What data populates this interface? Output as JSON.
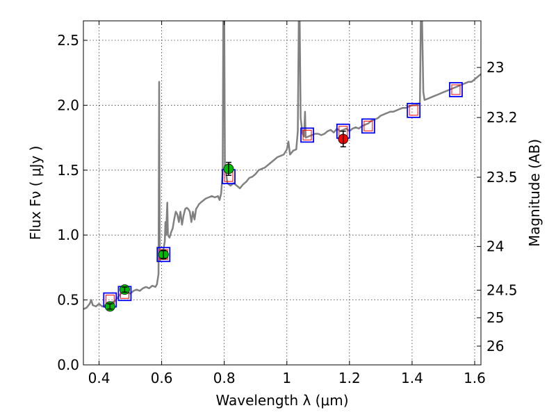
{
  "chart_data": {
    "type": "scatter",
    "title": "",
    "xlabel": "Wavelength  λ (μm)",
    "ylabel": "Flux  Fν  ( μJy )",
    "y2label": "Magnitude (AB)",
    "xlim": [
      0.35,
      1.62
    ],
    "ylim": [
      0.0,
      2.65
    ],
    "grid": true,
    "xticks": [
      0.4,
      0.6,
      0.8,
      1.0,
      1.2,
      1.4,
      1.6
    ],
    "xtick_labels": [
      "0.4",
      "0.6",
      "0.8",
      "1",
      "1.2",
      "1.4",
      "1.6"
    ],
    "yticks": [
      0.0,
      0.5,
      1.0,
      1.5,
      2.0,
      2.5
    ],
    "ytick_labels": [
      "0.0",
      "0.5",
      "1.0",
      "1.5",
      "2.0",
      "2.5"
    ],
    "magnitude_ticks": [
      {
        "label": "23",
        "mag": 23.0
      },
      {
        "label": "23.2",
        "mag": 23.2
      },
      {
        "label": "23.5",
        "mag": 23.5
      },
      {
        "label": "24",
        "mag": 24.0
      },
      {
        "label": "24.5",
        "mag": 24.5
      },
      {
        "label": "25",
        "mag": 25.0
      },
      {
        "label": "26",
        "mag": 26.0
      }
    ],
    "colors": {
      "spectrum": "#808080",
      "model_box": "#0000ff",
      "model_box_inner": "#ff0000",
      "obs_green": "#00bb00",
      "obs_red": "#ff0000",
      "errorbar": "#000000"
    },
    "series": [
      {
        "name": "model spectrum",
        "kind": "line",
        "points": [
          [
            0.35,
            0.43
          ],
          [
            0.36,
            0.44
          ],
          [
            0.37,
            0.47
          ],
          [
            0.375,
            0.5
          ],
          [
            0.38,
            0.46
          ],
          [
            0.39,
            0.45
          ],
          [
            0.4,
            0.47
          ],
          [
            0.41,
            0.45
          ],
          [
            0.42,
            0.46
          ],
          [
            0.43,
            0.47
          ],
          [
            0.44,
            0.48
          ],
          [
            0.45,
            0.49
          ],
          [
            0.46,
            0.52
          ],
          [
            0.47,
            0.55
          ],
          [
            0.48,
            0.57
          ],
          [
            0.49,
            0.56
          ],
          [
            0.5,
            0.55
          ],
          [
            0.51,
            0.57
          ],
          [
            0.52,
            0.58
          ],
          [
            0.53,
            0.57
          ],
          [
            0.54,
            0.59
          ],
          [
            0.55,
            0.6
          ],
          [
            0.56,
            0.59
          ],
          [
            0.57,
            0.61
          ],
          [
            0.58,
            0.6
          ],
          [
            0.585,
            0.62
          ],
          [
            0.59,
            0.7
          ],
          [
            0.592,
            2.18
          ],
          [
            0.594,
            0.8
          ],
          [
            0.6,
            0.84
          ],
          [
            0.605,
            0.88
          ],
          [
            0.61,
            0.95
          ],
          [
            0.612,
            1.1
          ],
          [
            0.614,
            1.0
          ],
          [
            0.618,
            1.25
          ],
          [
            0.62,
            1.0
          ],
          [
            0.625,
            0.98
          ],
          [
            0.63,
            1.02
          ],
          [
            0.635,
            1.05
          ],
          [
            0.64,
            1.12
          ],
          [
            0.645,
            1.18
          ],
          [
            0.65,
            1.16
          ],
          [
            0.655,
            1.1
          ],
          [
            0.66,
            1.18
          ],
          [
            0.665,
            1.08
          ],
          [
            0.67,
            1.15
          ],
          [
            0.675,
            1.2
          ],
          [
            0.68,
            1.21
          ],
          [
            0.685,
            1.2
          ],
          [
            0.69,
            1.18
          ],
          [
            0.695,
            1.1
          ],
          [
            0.7,
            1.18
          ],
          [
            0.705,
            1.12
          ],
          [
            0.71,
            1.2
          ],
          [
            0.715,
            1.22
          ],
          [
            0.72,
            1.24
          ],
          [
            0.73,
            1.26
          ],
          [
            0.74,
            1.28
          ],
          [
            0.75,
            1.29
          ],
          [
            0.76,
            1.3
          ],
          [
            0.77,
            1.29
          ],
          [
            0.78,
            1.3
          ],
          [
            0.785,
            1.27
          ],
          [
            0.79,
            1.32
          ],
          [
            0.795,
            1.48
          ],
          [
            0.797,
            2.65
          ],
          [
            0.8,
            2.65
          ],
          [
            0.802,
            1.55
          ],
          [
            0.81,
            1.4
          ],
          [
            0.82,
            1.38
          ],
          [
            0.83,
            1.4
          ],
          [
            0.84,
            1.38
          ],
          [
            0.85,
            1.36
          ],
          [
            0.86,
            1.39
          ],
          [
            0.87,
            1.41
          ],
          [
            0.88,
            1.44
          ],
          [
            0.89,
            1.45
          ],
          [
            0.9,
            1.47
          ],
          [
            0.91,
            1.5
          ],
          [
            0.92,
            1.51
          ],
          [
            0.93,
            1.52
          ],
          [
            0.94,
            1.54
          ],
          [
            0.95,
            1.56
          ],
          [
            0.96,
            1.58
          ],
          [
            0.97,
            1.6
          ],
          [
            0.98,
            1.61
          ],
          [
            0.99,
            1.62
          ],
          [
            1.0,
            1.66
          ],
          [
            1.005,
            1.72
          ],
          [
            1.01,
            1.62
          ],
          [
            1.02,
            1.65
          ],
          [
            1.03,
            1.66
          ],
          [
            1.035,
            1.8
          ],
          [
            1.038,
            2.65
          ],
          [
            1.041,
            2.65
          ],
          [
            1.044,
            1.9
          ],
          [
            1.05,
            1.78
          ],
          [
            1.055,
            1.76
          ],
          [
            1.058,
            1.95
          ],
          [
            1.06,
            1.75
          ],
          [
            1.07,
            1.76
          ],
          [
            1.08,
            1.77
          ],
          [
            1.09,
            1.78
          ],
          [
            1.1,
            1.78
          ],
          [
            1.11,
            1.77
          ],
          [
            1.12,
            1.78
          ],
          [
            1.13,
            1.8
          ],
          [
            1.14,
            1.81
          ],
          [
            1.15,
            1.79
          ],
          [
            1.16,
            1.82
          ],
          [
            1.17,
            1.8
          ],
          [
            1.18,
            1.81
          ],
          [
            1.19,
            1.82
          ],
          [
            1.2,
            1.8
          ],
          [
            1.21,
            1.82
          ],
          [
            1.22,
            1.83
          ],
          [
            1.23,
            1.82
          ],
          [
            1.24,
            1.84
          ],
          [
            1.25,
            1.85
          ],
          [
            1.26,
            1.86
          ],
          [
            1.27,
            1.88
          ],
          [
            1.28,
            1.89
          ],
          [
            1.29,
            1.9
          ],
          [
            1.3,
            1.92
          ],
          [
            1.31,
            1.93
          ],
          [
            1.32,
            1.94
          ],
          [
            1.33,
            1.95
          ],
          [
            1.34,
            1.95
          ],
          [
            1.35,
            1.96
          ],
          [
            1.36,
            1.97
          ],
          [
            1.37,
            1.98
          ],
          [
            1.38,
            1.98
          ],
          [
            1.39,
            1.99
          ],
          [
            1.4,
            2.0
          ],
          [
            1.41,
            2.0
          ],
          [
            1.42,
            2.01
          ],
          [
            1.425,
            2.02
          ],
          [
            1.428,
            2.65
          ],
          [
            1.432,
            2.65
          ],
          [
            1.436,
            2.1
          ],
          [
            1.44,
            2.04
          ],
          [
            1.45,
            2.05
          ],
          [
            1.46,
            2.06
          ],
          [
            1.47,
            2.07
          ],
          [
            1.48,
            2.08
          ],
          [
            1.49,
            2.09
          ],
          [
            1.5,
            2.1
          ],
          [
            1.51,
            2.11
          ],
          [
            1.52,
            2.12
          ],
          [
            1.53,
            2.13
          ],
          [
            1.54,
            2.14
          ],
          [
            1.55,
            2.15
          ],
          [
            1.56,
            2.16
          ],
          [
            1.57,
            2.17
          ],
          [
            1.58,
            2.18
          ],
          [
            1.59,
            2.18
          ],
          [
            1.6,
            2.2
          ],
          [
            1.61,
            2.22
          ],
          [
            1.62,
            2.24
          ]
        ]
      },
      {
        "name": "model photometry",
        "kind": "box",
        "points": [
          {
            "x": 0.435,
            "y": 0.5
          },
          {
            "x": 0.482,
            "y": 0.55
          },
          {
            "x": 0.606,
            "y": 0.85
          },
          {
            "x": 0.814,
            "y": 1.45
          },
          {
            "x": 1.065,
            "y": 1.77
          },
          {
            "x": 1.18,
            "y": 1.8
          },
          {
            "x": 1.26,
            "y": 1.84
          },
          {
            "x": 1.405,
            "y": 1.96
          },
          {
            "x": 1.54,
            "y": 2.12
          }
        ]
      },
      {
        "name": "observed photometry",
        "kind": "errorbar",
        "points": [
          {
            "x": 0.435,
            "y": 0.45,
            "err": 0.02,
            "color": "green"
          },
          {
            "x": 0.482,
            "y": 0.58,
            "err": 0.02,
            "color": "green"
          },
          {
            "x": 0.606,
            "y": 0.85,
            "err": 0.03,
            "color": "green"
          },
          {
            "x": 0.814,
            "y": 1.51,
            "err": 0.05,
            "color": "green"
          },
          {
            "x": 1.18,
            "y": 1.74,
            "err": 0.06,
            "color": "red"
          }
        ]
      }
    ]
  }
}
